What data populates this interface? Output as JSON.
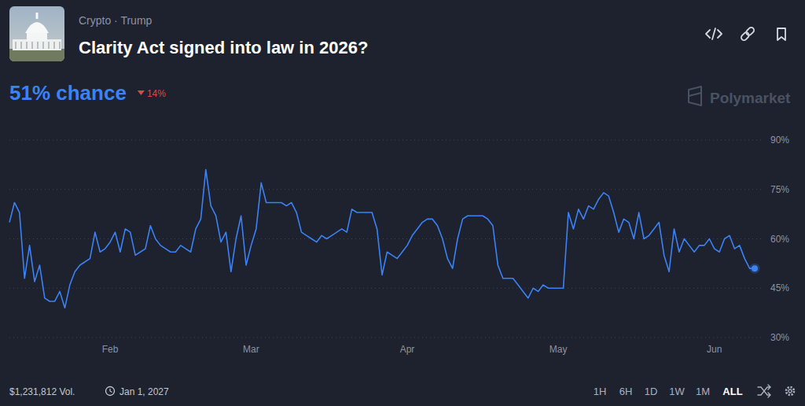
{
  "chart_data": {
    "type": "line",
    "title": "Clarity Act signed into law in 2026?",
    "subtitle": "Crypto · Trump",
    "categories": [
      null,
      null,
      null,
      null,
      null,
      null,
      null,
      null,
      null,
      null,
      null,
      null,
      null,
      null,
      null,
      null,
      null,
      null,
      null,
      null,
      "Feb",
      null,
      null,
      null,
      null,
      null,
      null,
      null,
      null,
      null,
      null,
      null,
      null,
      null,
      null,
      null,
      null,
      null,
      null,
      null,
      null,
      null,
      null,
      null,
      null,
      null,
      null,
      null,
      "Mar",
      null,
      null,
      null,
      null,
      null,
      null,
      null,
      null,
      null,
      null,
      null,
      null,
      null,
      null,
      null,
      null,
      null,
      null,
      null,
      null,
      null,
      null,
      null,
      null,
      null,
      null,
      null,
      null,
      null,
      null,
      "Apr",
      null,
      null,
      null,
      null,
      null,
      null,
      null,
      null,
      null,
      null,
      null,
      null,
      null,
      null,
      null,
      null,
      null,
      null,
      null,
      null,
      null,
      null,
      null,
      null,
      null,
      null,
      null,
      null,
      null,
      "May",
      null,
      null,
      null,
      null,
      null,
      null,
      null,
      null,
      null,
      null,
      null,
      null,
      null,
      null,
      null,
      null,
      null,
      null,
      null,
      null,
      null,
      null,
      null,
      null,
      null,
      null,
      null,
      null,
      null,
      null,
      "Jun",
      null,
      null,
      null,
      null,
      null,
      null,
      null,
      null
    ],
    "values": [
      65,
      71,
      68,
      48,
      58,
      47,
      52,
      42,
      41,
      41,
      44,
      39,
      46,
      50,
      52,
      53,
      54,
      62,
      56,
      57,
      59,
      62,
      56,
      63,
      62,
      55,
      56,
      57,
      64,
      60,
      58,
      57,
      56,
      56,
      58,
      57,
      56,
      63,
      66,
      81,
      70,
      67,
      59,
      62,
      50,
      60,
      67,
      52,
      58,
      63,
      77,
      71,
      71,
      71,
      71,
      70,
      71,
      68,
      62,
      61,
      60,
      59,
      61,
      60,
      61,
      62,
      63,
      62,
      69,
      68,
      68,
      68,
      68,
      63,
      49,
      56,
      55,
      54,
      56,
      58,
      61,
      63,
      65,
      66,
      66,
      64,
      60,
      54,
      51,
      60,
      66,
      67,
      67,
      67,
      67,
      66,
      64,
      52,
      48,
      48,
      48,
      46,
      44,
      42,
      45,
      44,
      46,
      45,
      45,
      45,
      45,
      68,
      63,
      69,
      66,
      70,
      69,
      72,
      74,
      73,
      68,
      62,
      66,
      65,
      60,
      68,
      60,
      61,
      63,
      65,
      55,
      50,
      63,
      56,
      60,
      58,
      56,
      58,
      58,
      60,
      57,
      56,
      60,
      61,
      57,
      58,
      54,
      51,
      51
    ],
    "color": "#3b82f6",
    "ylim": [
      30,
      90
    ],
    "yticks": [
      {
        "value": 30,
        "label": "30%"
      },
      {
        "value": 45,
        "label": "45%"
      },
      {
        "value": 60,
        "label": "60%"
      },
      {
        "value": 75,
        "label": "75%"
      },
      {
        "value": 90,
        "label": "90%"
      }
    ],
    "grid": true
  },
  "header": {
    "chance": "51% chance",
    "change": "14%",
    "brand": "Polymarket"
  },
  "footer": {
    "volume": "$1,231,812 Vol.",
    "end_date": "Jan 1, 2027",
    "ranges": [
      "1H",
      "6H",
      "1D",
      "1W",
      "1M",
      "ALL"
    ],
    "active_range": "ALL"
  }
}
